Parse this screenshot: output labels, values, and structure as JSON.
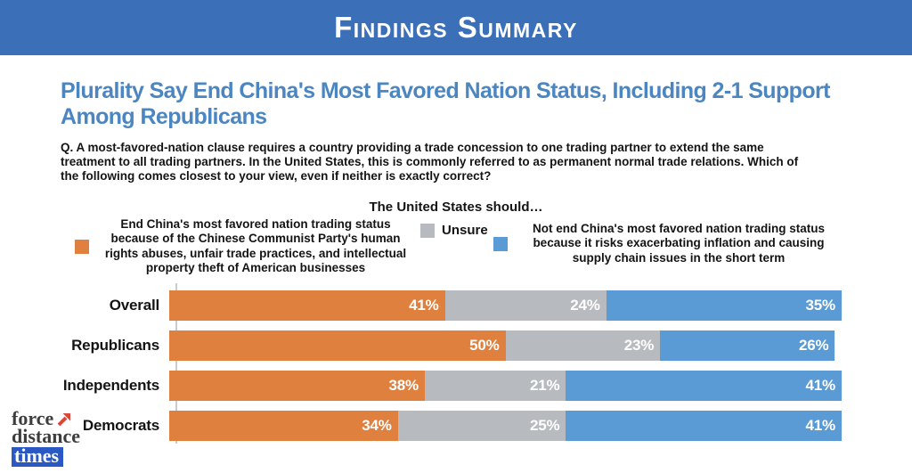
{
  "header": {
    "title": "Findings Summary"
  },
  "headline": "Plurality Say End China's Most Favored Nation Status, Including 2-1 Support Among Republicans",
  "question": "Q. A most-favored-nation clause requires a country providing a trade concession to one trading partner to extend the same treatment to all trading partners. In the United States, this is commonly referred to as permanent normal trade relations. Which of the following comes closest to your view, even if neither is exactly correct?",
  "chart_data": {
    "type": "bar",
    "orientation": "horizontal",
    "stacked": true,
    "title": "The United States should…",
    "categories": [
      "Overall",
      "Republicans",
      "Independents",
      "Democrats"
    ],
    "series": [
      {
        "key": "end-mfn-status",
        "name": "End China's most favored nation trading status because of the Chinese Communist Party's human rights abuses, unfair trade practices, and intellectual property theft of American businesses",
        "color": "#E0803E",
        "values": [
          41,
          50,
          38,
          34
        ]
      },
      {
        "key": "unsure",
        "name": "Unsure",
        "color": "#B7BABE",
        "values": [
          24,
          23,
          21,
          25
        ]
      },
      {
        "key": "not-end-mfn-status",
        "name": "Not end China's most favored nation trading status because it risks exacerbating inflation and causing supply chain issues in the short term",
        "color": "#5B9BD5",
        "values": [
          35,
          26,
          41,
          41
        ]
      }
    ],
    "value_suffix": "%",
    "xlim": [
      0,
      100
    ],
    "grid": false,
    "legend_position": "top"
  },
  "logo": {
    "line1": "force",
    "line2": "distance",
    "line3": "times",
    "arrow_color": "#D9473B"
  }
}
